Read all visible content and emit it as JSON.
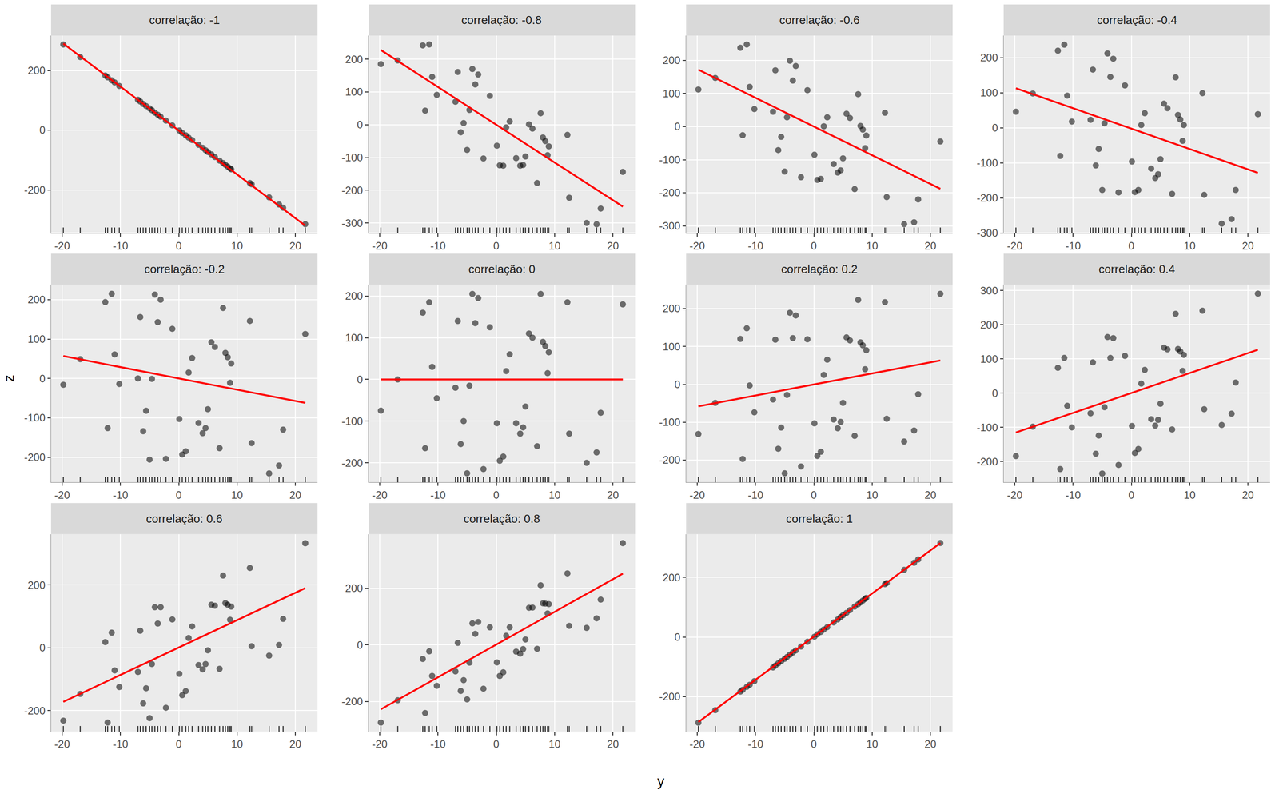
{
  "chart_data": {
    "type": "scatter",
    "x_label": "y",
    "y_label": "z",
    "grid": true,
    "x": [
      -19.8,
      -16.9,
      -12.6,
      -12.2,
      -11.5,
      -11.0,
      -10.2,
      -7.0,
      -6.6,
      -6.1,
      -5.6,
      -5.0,
      -4.6,
      -4.1,
      -3.6,
      -3.1,
      -2.2,
      -1.1,
      0.1,
      0.6,
      1.2,
      1.7,
      2.3,
      3.4,
      4.1,
      4.6,
      5.0,
      5.6,
      6.2,
      7.0,
      7.6,
      8.0,
      8.4,
      8.8,
      9.0,
      12.2,
      12.5,
      15.5,
      17.2,
      17.9,
      21.7
    ],
    "xlim": [
      -21.9,
      23.8
    ],
    "xticks": [
      -20,
      -10,
      0,
      10,
      20
    ],
    "panels": [
      {
        "title": "correlação: -1",
        "ylim": [
          -345,
          317
        ],
        "yticks": [
          -200,
          0,
          200
        ],
        "series": [
          {
            "type": "scatter",
            "color": "#000000",
            "values": [
              287,
              245,
              183,
              177,
              167,
              160,
              148,
              102,
              96,
              88,
              81,
              73,
              67,
              59,
              52,
              45,
              32,
              16,
              -1,
              -9,
              -17,
              -25,
              -33,
              -49,
              -59,
              -67,
              -73,
              -81,
              -90,
              -102,
              -110,
              -116,
              -122,
              -128,
              -131,
              -177,
              -181,
              -225,
              -249,
              -260,
              -315
            ]
          },
          {
            "type": "line",
            "color": "#ff0000",
            "x": [
              -19.8,
              21.7
            ],
            "values": [
              290,
              -320
            ]
          }
        ]
      },
      {
        "title": "correlação: -0.8",
        "ylim": [
          -331,
          272
        ],
        "yticks": [
          -300,
          -200,
          -100,
          0,
          100,
          200
        ],
        "series": [
          {
            "type": "scatter",
            "color": "#000000",
            "values": [
              185,
              196,
              242,
              43,
              245,
              146,
              91,
              70,
              161,
              -23,
              5,
              -77,
              45,
              170,
              123,
              153,
              -103,
              88,
              -64,
              -124,
              -125,
              -8,
              10,
              -102,
              -125,
              -123,
              -97,
              1,
              -12,
              -178,
              35,
              -39,
              -50,
              -93,
              -66,
              -31,
              -223,
              -300,
              -304,
              -256,
              -144
            ]
          },
          {
            "type": "line",
            "color": "#ff0000",
            "x": [
              -19.8,
              21.7
            ],
            "values": [
              228,
              -250
            ]
          }
        ]
      },
      {
        "title": "correlação: -0.6",
        "ylim": [
          -322,
          275
        ],
        "yticks": [
          -300,
          -200,
          -100,
          0,
          100,
          200
        ],
        "series": [
          {
            "type": "scatter",
            "color": "#000000",
            "values": [
              112,
              147,
              238,
              -26,
              248,
              120,
              53,
              45,
              170,
              -71,
              -31,
              -136,
              28,
              199,
              139,
              183,
              -153,
              110,
              -85,
              -161,
              -158,
              1,
              28,
              -113,
              -139,
              -132,
              -96,
              39,
              26,
              -189,
              98,
              2,
              -9,
              -65,
              -27,
              42,
              -213,
              -295,
              -289,
              -220,
              -45
            ]
          },
          {
            "type": "line",
            "color": "#ff0000",
            "x": [
              -19.8,
              21.7
            ],
            "values": [
              172,
              -188
            ]
          }
        ]
      },
      {
        "title": "correlação: -0.4",
        "ylim": [
          -300,
          263
        ],
        "yticks": [
          -300,
          -200,
          -100,
          0,
          100,
          200
        ],
        "series": [
          {
            "type": "scatter",
            "color": "#000000",
            "values": [
              46,
              98,
              220,
              -80,
              237,
              92,
              18,
              23,
              166,
              -107,
              -60,
              -177,
              13,
              212,
              145,
              197,
              -184,
              121,
              -96,
              -183,
              -177,
              8,
              42,
              -116,
              -143,
              -132,
              -89,
              69,
              56,
              -188,
              144,
              37,
              24,
              -37,
              8,
              99,
              -191,
              -273,
              -260,
              -177,
              39
            ]
          },
          {
            "type": "line",
            "color": "#ff0000",
            "x": [
              -19.8,
              21.7
            ],
            "values": [
              113,
              -128
            ]
          }
        ]
      },
      {
        "title": "correlação: -0.2",
        "ylim": [
          -264,
          238
        ],
        "yticks": [
          -200,
          -100,
          0,
          100,
          200
        ],
        "series": [
          {
            "type": "scatter",
            "color": "#000000",
            "values": [
              -16,
              49,
              194,
              -126,
              215,
              61,
              -14,
              0,
              156,
              -134,
              -82,
              -206,
              -1,
              213,
              143,
              200,
              -204,
              126,
              -103,
              -193,
              -185,
              15,
              52,
              -113,
              -139,
              -126,
              -78,
              92,
              80,
              -177,
              179,
              65,
              54,
              -11,
              38,
              146,
              -164,
              -241,
              -221,
              -130,
              113
            ]
          },
          {
            "type": "line",
            "color": "#ff0000",
            "x": [
              -19.8,
              21.7
            ],
            "values": [
              57,
              -62
            ]
          }
        ]
      },
      {
        "title": "correlação: 0",
        "ylim": [
          -247,
          227
        ],
        "yticks": [
          -200,
          -100,
          0,
          100,
          200
        ],
        "series": [
          {
            "type": "scatter",
            "color": "#000000",
            "values": [
              -75,
              0,
              160,
              -165,
              185,
              30,
              -45,
              -20,
              140,
              -155,
              -100,
              -225,
              -15,
              205,
              135,
              195,
              -215,
              125,
              -105,
              -195,
              -185,
              20,
              60,
              -105,
              -130,
              -115,
              -65,
              110,
              100,
              -160,
              205,
              90,
              80,
              15,
              65,
              185,
              -130,
              -200,
              -175,
              -80,
              180
            ]
          },
          {
            "type": "line",
            "color": "#ff0000",
            "x": [
              -19.8,
              21.7
            ],
            "values": [
              0,
              0
            ]
          }
        ]
      },
      {
        "title": "correlação: 0.2",
        "ylim": [
          -259,
          263
        ],
        "yticks": [
          -200,
          -100,
          0,
          100,
          200
        ],
        "series": [
          {
            "type": "scatter",
            "color": "#000000",
            "values": [
              -131,
              -49,
              120,
              -197,
              148,
              -3,
              -74,
              -40,
              118,
              -170,
              -114,
              -235,
              -28,
              189,
              122,
              182,
              -217,
              119,
              -103,
              -189,
              -178,
              25,
              65,
              -93,
              -116,
              -99,
              -49,
              124,
              116,
              -136,
              223,
              111,
              103,
              40,
              90,
              217,
              -91,
              -151,
              -122,
              -26,
              239
            ]
          },
          {
            "type": "line",
            "color": "#ff0000",
            "x": [
              -19.8,
              21.7
            ],
            "values": [
              -58,
              63
            ]
          }
        ]
      },
      {
        "title": "correlação: 0.4",
        "ylim": [
          -261,
          317
        ],
        "yticks": [
          -200,
          -100,
          0,
          100,
          200,
          300
        ],
        "series": [
          {
            "type": "scatter",
            "color": "#000000",
            "values": [
              -184,
              -98,
              74,
              -222,
              103,
              -37,
              -100,
              -59,
              90,
              -177,
              -124,
              -235,
              -41,
              164,
              103,
              161,
              -210,
              109,
              -96,
              -175,
              -163,
              28,
              68,
              -76,
              -95,
              -78,
              -31,
              133,
              128,
              -106,
              232,
              129,
              122,
              65,
              112,
              241,
              -47,
              -93,
              -60,
              31,
              291
            ]
          },
          {
            "type": "line",
            "color": "#ff0000",
            "x": [
              -19.8,
              21.7
            ],
            "values": [
              -115,
              127
            ]
          }
        ]
      },
      {
        "title": "correlação: 0.6",
        "ylim": [
          -267,
          362
        ],
        "yticks": [
          -200,
          0,
          200
        ],
        "series": [
          {
            "type": "scatter",
            "color": "#000000",
            "values": [
              -232,
              -147,
              18,
              -238,
              48,
              -72,
              -125,
              -77,
              54,
              -177,
              -129,
              -224,
              -52,
              129,
              77,
              129,
              -191,
              90,
              -83,
              -151,
              -138,
              31,
              68,
              -55,
              -69,
              -52,
              -8,
              137,
              134,
              -67,
              230,
              142,
              137,
              89,
              131,
              254,
              5,
              -25,
              9,
              92,
              333
            ]
          },
          {
            "type": "line",
            "color": "#ff0000",
            "x": [
              -19.8,
              21.7
            ],
            "values": [
              -172,
              190
            ]
          }
        ]
      },
      {
        "title": "correlação: 0.8",
        "ylim": [
          -307,
          392
        ],
        "yticks": [
          -200,
          0,
          200
        ],
        "series": [
          {
            "type": "scatter",
            "color": "#000000",
            "values": [
              -275,
              -196,
              -50,
              -241,
              -23,
              -110,
              -145,
              -94,
              7,
              -163,
              -125,
              -193,
              -63,
              76,
              39,
              81,
              -155,
              62,
              -62,
              -110,
              -97,
              32,
              62,
              -24,
              -31,
              -15,
              19,
              131,
              132,
              -14,
              211,
              147,
              146,
              111,
              144,
              253,
              67,
              60,
              94,
              160,
              360
            ]
          },
          {
            "type": "line",
            "color": "#ff0000",
            "x": [
              -19.8,
              21.7
            ],
            "values": [
              -228,
              252
            ]
          }
        ]
      },
      {
        "title": "correlação: 1",
        "ylim": [
          -317,
          345
        ],
        "yticks": [
          -200,
          0,
          200
        ],
        "series": [
          {
            "type": "scatter",
            "color": "#000000",
            "values": [
              -287,
              -245,
              -183,
              -177,
              -167,
              -160,
              -148,
              -102,
              -96,
              -88,
              -81,
              -73,
              -67,
              -59,
              -52,
              -45,
              -32,
              -16,
              1,
              9,
              17,
              25,
              33,
              49,
              59,
              67,
              73,
              81,
              90,
              102,
              110,
              116,
              122,
              128,
              131,
              177,
              181,
              225,
              249,
              260,
              315
            ]
          },
          {
            "type": "line",
            "color": "#ff0000",
            "x": [
              -19.8,
              21.7
            ],
            "values": [
              -285,
              315
            ]
          }
        ]
      }
    ]
  }
}
